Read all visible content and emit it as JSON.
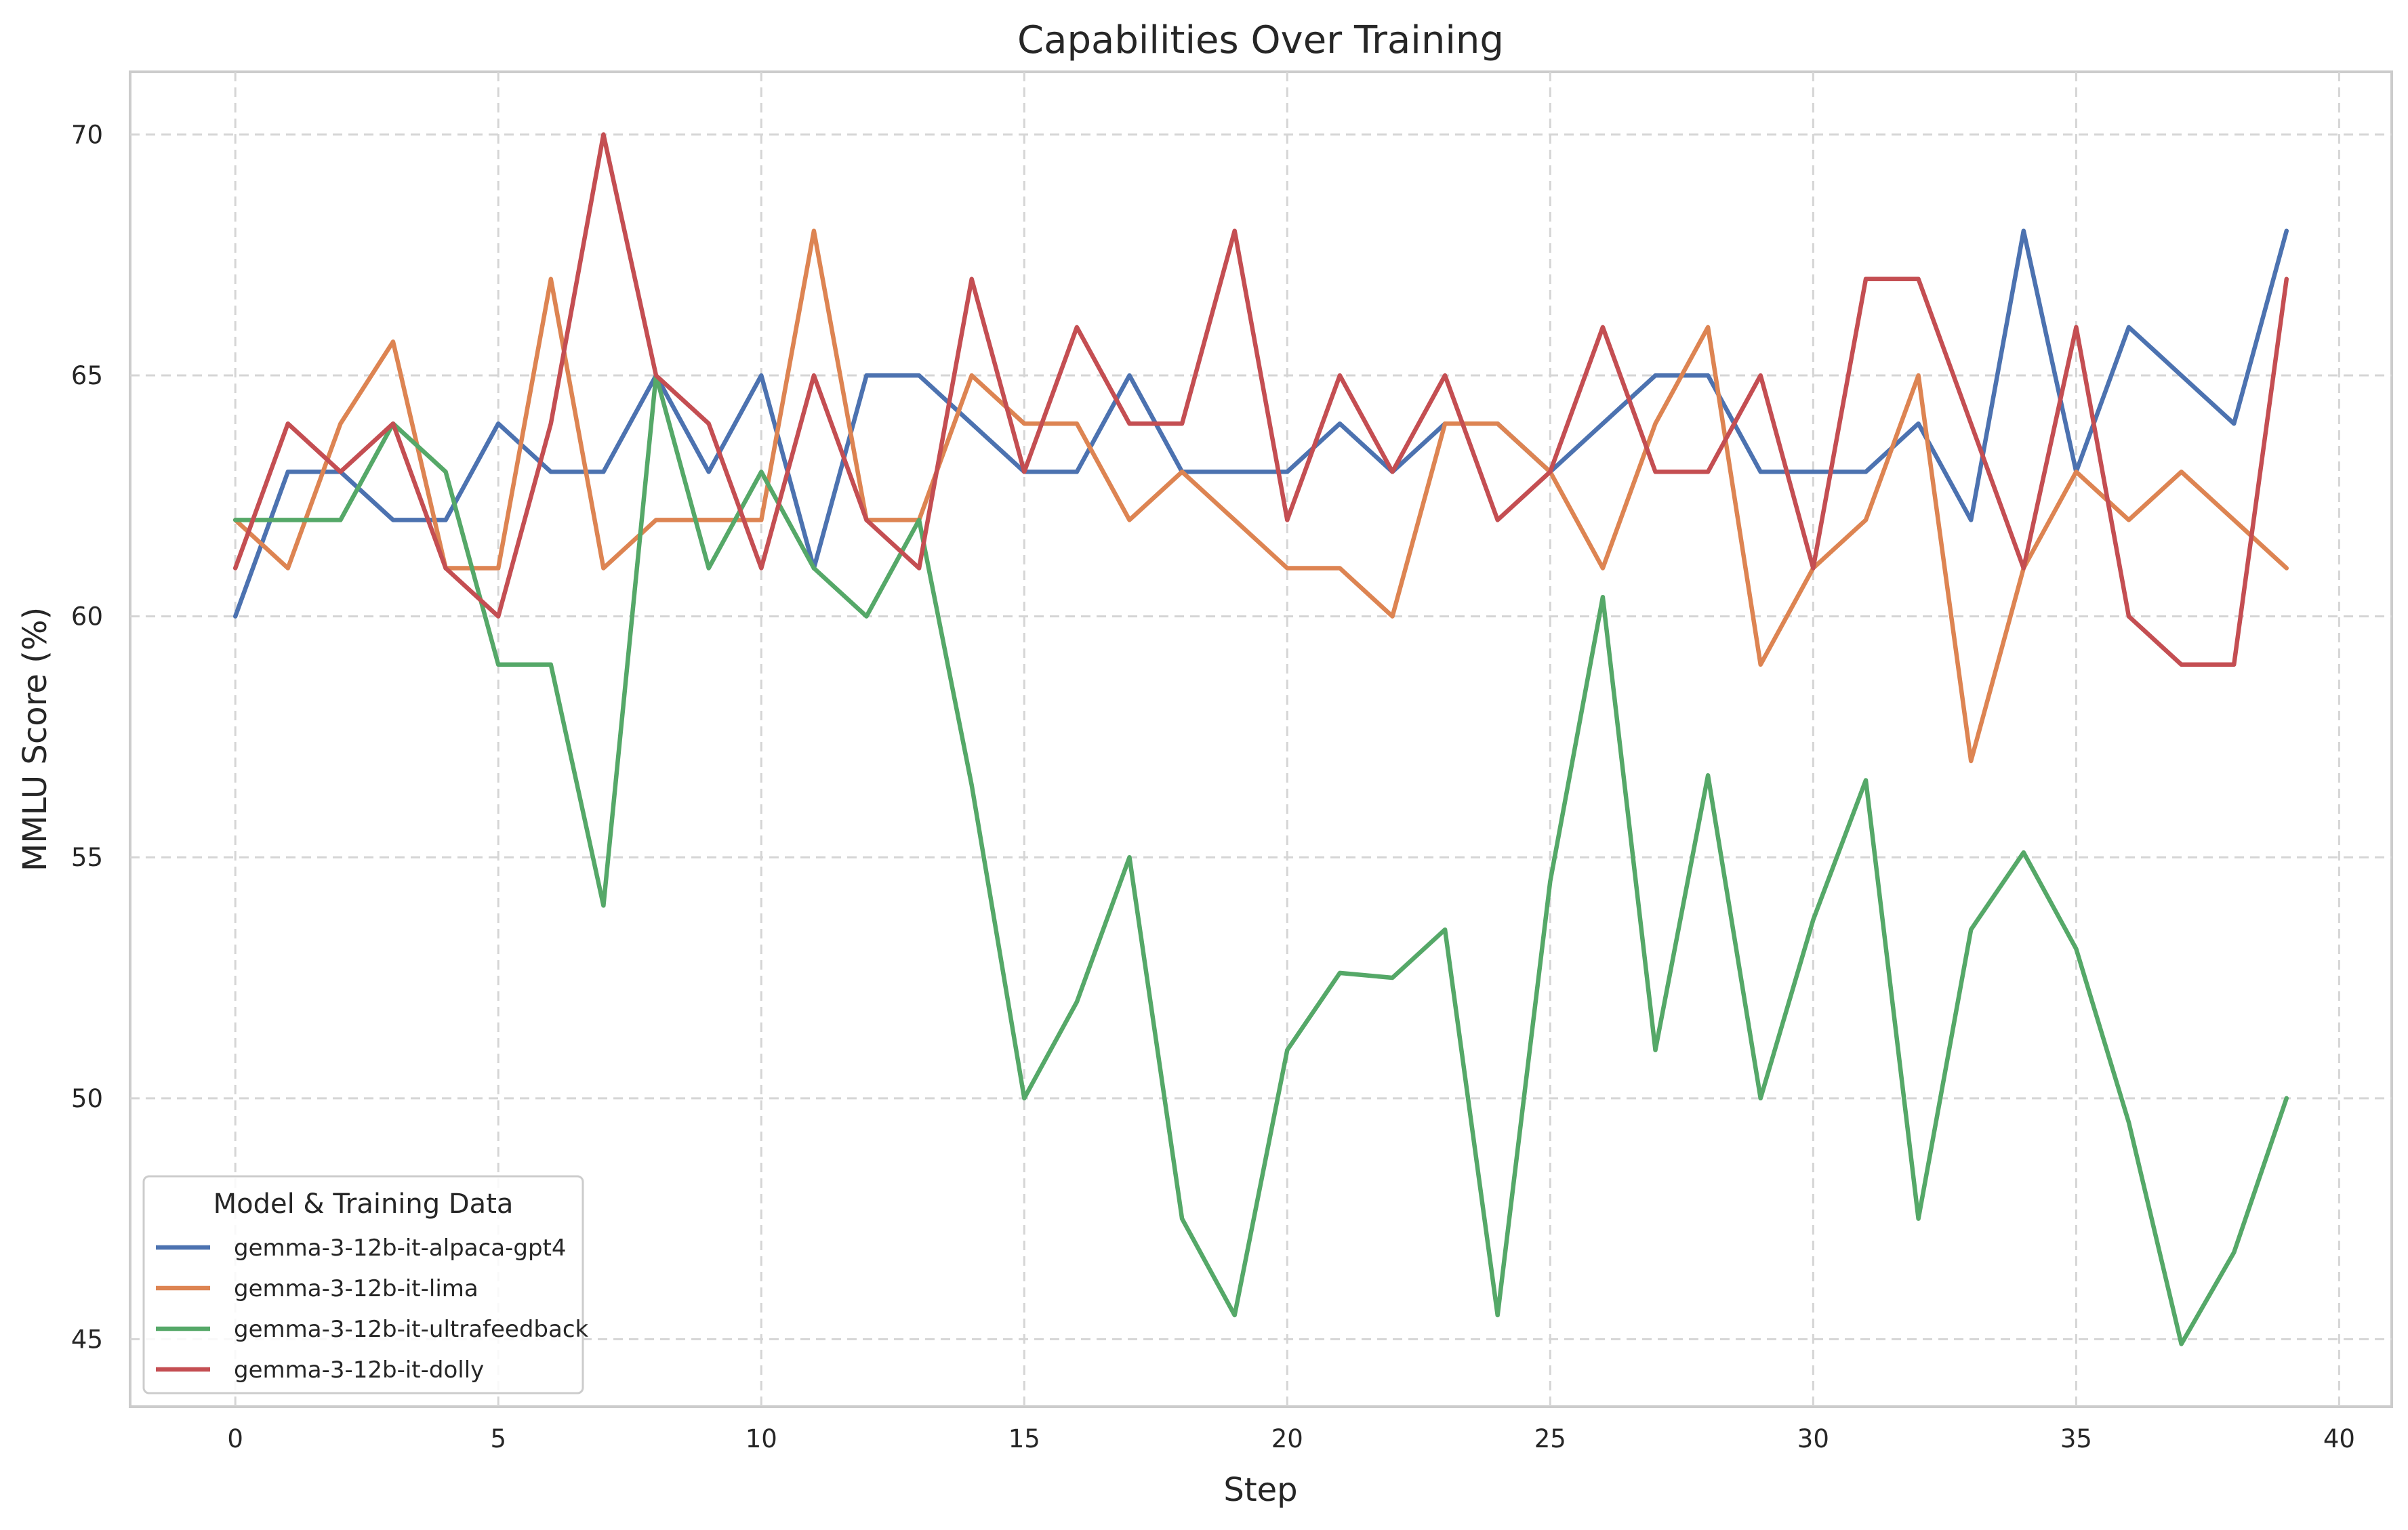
{
  "chart_data": {
    "type": "line",
    "title": "Capabilities Over Training",
    "xlabel": "Step",
    "ylabel": "MMLU Score (%)",
    "xlim": [
      -2,
      41
    ],
    "ylim": [
      43.6,
      71.3
    ],
    "xticks": [
      0,
      5,
      10,
      15,
      20,
      25,
      30,
      35,
      40
    ],
    "yticks": [
      45,
      50,
      55,
      60,
      65,
      70
    ],
    "grid": true,
    "legend": {
      "title": "Model & Training Data",
      "placement": "lower-left"
    },
    "x": [
      0,
      1,
      2,
      3,
      4,
      5,
      6,
      7,
      8,
      9,
      10,
      11,
      12,
      13,
      14,
      15,
      16,
      17,
      18,
      19,
      20,
      21,
      22,
      23,
      24,
      25,
      26,
      27,
      28,
      29,
      30,
      31,
      32,
      33,
      34,
      35,
      36,
      37,
      38,
      39
    ],
    "series": [
      {
        "name": "gemma-3-12b-it-alpaca-gpt4",
        "color": "#4c72b0",
        "values": [
          60,
          63,
          63,
          62,
          62,
          64,
          63,
          63,
          65,
          63,
          65,
          61,
          65,
          65,
          64,
          63,
          63,
          65,
          63,
          63,
          63,
          64,
          63,
          64,
          64,
          63,
          64,
          65,
          65,
          63,
          63,
          63,
          64,
          62,
          68,
          63,
          66,
          65,
          64,
          68
        ]
      },
      {
        "name": "gemma-3-12b-it-lima",
        "color": "#dd8452",
        "values": [
          62,
          61,
          64,
          65.7,
          61,
          61,
          67,
          61,
          62,
          62,
          62,
          68,
          62,
          62,
          65,
          64,
          64,
          62,
          63,
          62,
          61,
          61,
          60,
          64,
          64,
          63,
          61,
          64,
          66,
          59,
          61,
          62,
          65,
          57,
          61,
          63,
          62,
          63,
          62,
          61
        ]
      },
      {
        "name": "gemma-3-12b-it-ultrafeedback",
        "color": "#55a868",
        "values": [
          62,
          62,
          62,
          64,
          63,
          59,
          59,
          54,
          65,
          61,
          63,
          61,
          60,
          62,
          56.5,
          50,
          52,
          55,
          47.5,
          45.5,
          51,
          52.6,
          52.5,
          53.5,
          45.5,
          54.5,
          60.4,
          51,
          56.7,
          50,
          53.7,
          56.6,
          47.5,
          53.5,
          55.1,
          53.1,
          49.5,
          44.9,
          46.8,
          50
        ]
      },
      {
        "name": "gemma-3-12b-it-dolly",
        "color": "#c44e52",
        "values": [
          61,
          64,
          63,
          64,
          61,
          60,
          64,
          70,
          65,
          64,
          61,
          65,
          62,
          61,
          67,
          63,
          66,
          64,
          64,
          68,
          62,
          65,
          63,
          65,
          62,
          63,
          66,
          63,
          63,
          65,
          61,
          67,
          67,
          64,
          61,
          66,
          60,
          59,
          59,
          67
        ]
      }
    ]
  }
}
